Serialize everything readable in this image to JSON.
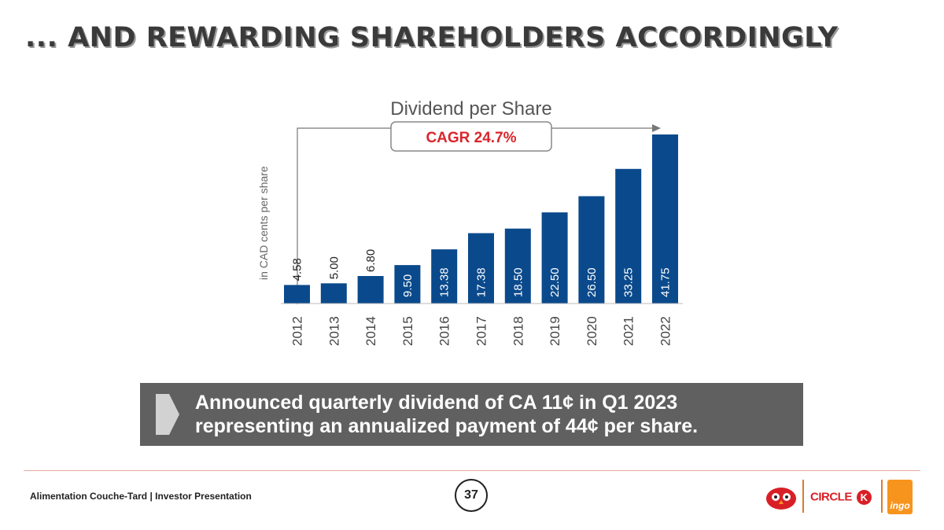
{
  "slide": {
    "title": "... AND REWARDING SHAREHOLDERS ACCORDINGLY",
    "page_number": "37",
    "footer": "Alimentation Couche-Tard | Investor Presentation"
  },
  "callout": {
    "line1": "Announced quarterly dividend of CA 11¢ in Q1 2023",
    "line2": "representing an annualized payment of 44¢ per share."
  },
  "logos": {
    "circle_k": "CIRCLE",
    "circle_k_letter": "K",
    "ingo": "ingo"
  },
  "chart_data": {
    "type": "bar",
    "title": "Dividend per Share",
    "annotation": "CAGR 24.7%",
    "ylabel": "in CAD cents per share",
    "xlabel": "",
    "categories": [
      "2012",
      "2013",
      "2014",
      "2015",
      "2016",
      "2017",
      "2018",
      "2019",
      "2020",
      "2021",
      "2022"
    ],
    "values": [
      4.58,
      5.0,
      6.8,
      9.5,
      13.38,
      17.38,
      18.5,
      22.5,
      26.5,
      33.25,
      41.75
    ],
    "labels": [
      "4.58",
      "5.00",
      "6.80",
      "9.50",
      "13.38",
      "17.38",
      "18.50",
      "22.50",
      "26.50",
      "33.25",
      "41.75"
    ],
    "ylim": [
      0,
      41.75
    ],
    "grid": false,
    "bar_color": "#0a4a8c",
    "annotation_color": "#d9262c"
  }
}
